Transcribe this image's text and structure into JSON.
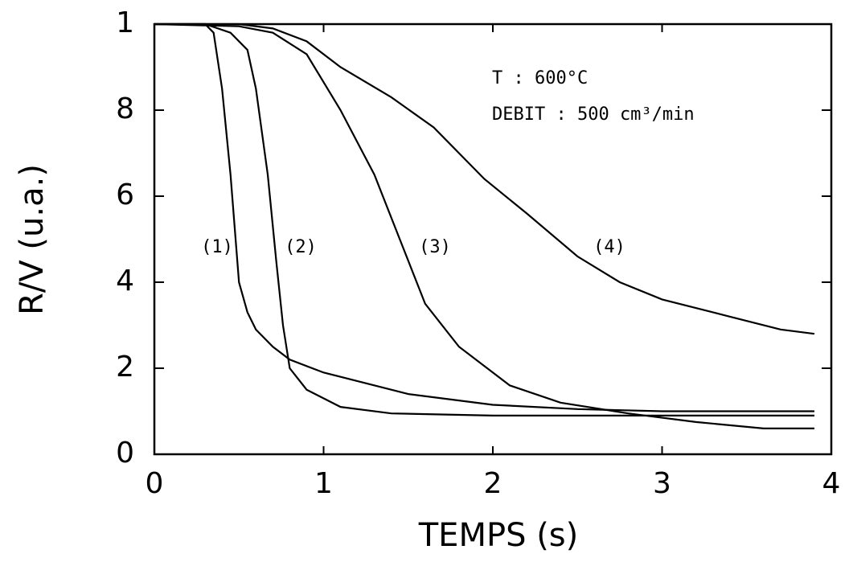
{
  "chart_data": {
    "type": "line",
    "x_label": "TEMPS  (s)",
    "y_label": "R/V  (u.a.)",
    "xlim": [
      0,
      4
    ],
    "ylim": [
      0,
      10
    ],
    "xticks": [
      0,
      1,
      2,
      3,
      4
    ],
    "yticks": [
      0,
      2,
      4,
      6,
      8,
      {
        "value": 10,
        "label": "1"
      }
    ],
    "annotations": [
      "T : 600°C",
      "DEBIT : 500 cm³/min",
      "(1)",
      "(2)",
      "(3)",
      "(4)"
    ],
    "series": [
      {
        "name": "(1)",
        "color": "#000000",
        "x": [
          0,
          0.3,
          0.35,
          0.4,
          0.45,
          0.5,
          0.55,
          0.6,
          0.7,
          0.8,
          1.0,
          1.5,
          2.0,
          2.5,
          3.0,
          3.5,
          3.9
        ],
        "values": [
          10,
          10,
          9.8,
          8.5,
          6.5,
          4.0,
          3.3,
          2.9,
          2.5,
          2.2,
          1.9,
          1.4,
          1.15,
          1.05,
          1.0,
          1.0,
          1.0
        ]
      },
      {
        "name": "(2)",
        "color": "#000000",
        "x": [
          0,
          0.3,
          0.45,
          0.55,
          0.6,
          0.67,
          0.72,
          0.76,
          0.8,
          0.9,
          1.1,
          1.4,
          2.0,
          3.0,
          3.9
        ],
        "values": [
          10,
          10,
          9.8,
          9.4,
          8.5,
          6.5,
          4.5,
          3.0,
          2.0,
          1.5,
          1.1,
          0.95,
          0.9,
          0.9,
          0.9
        ]
      },
      {
        "name": "(3)",
        "color": "#000000",
        "x": [
          0,
          0.5,
          0.7,
          0.9,
          1.1,
          1.3,
          1.45,
          1.6,
          1.8,
          2.1,
          2.4,
          2.8,
          3.2,
          3.6,
          3.9
        ],
        "values": [
          10,
          9.95,
          9.8,
          9.3,
          8.0,
          6.5,
          5.0,
          3.5,
          2.5,
          1.6,
          1.2,
          0.95,
          0.75,
          0.6,
          0.6
        ]
      },
      {
        "name": "(4)",
        "color": "#000000",
        "x": [
          0,
          0.5,
          0.7,
          0.9,
          1.1,
          1.4,
          1.65,
          1.95,
          2.2,
          2.5,
          2.75,
          3.0,
          3.4,
          3.7,
          3.9
        ],
        "values": [
          10,
          10,
          9.9,
          9.6,
          9.0,
          8.3,
          7.6,
          6.4,
          5.6,
          4.6,
          4.0,
          3.6,
          3.2,
          2.9,
          2.8
        ]
      }
    ]
  }
}
